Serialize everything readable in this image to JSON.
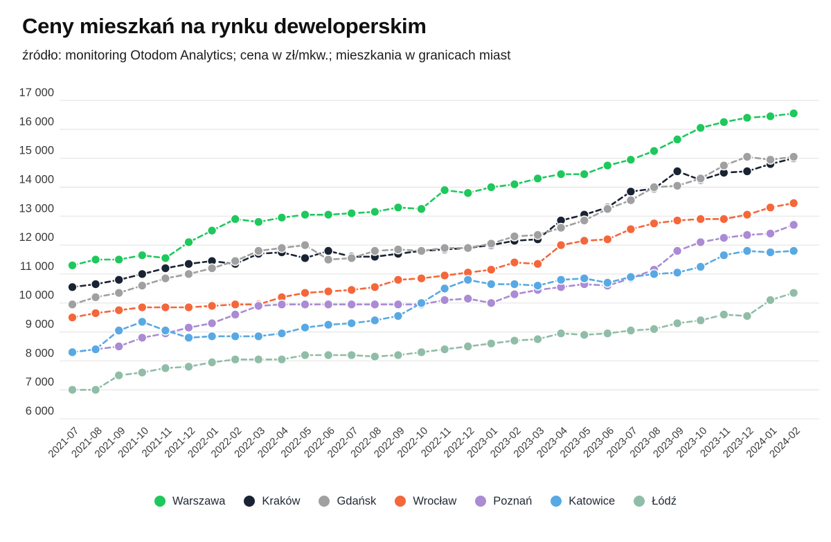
{
  "page": {
    "title": "Ceny mieszkań na rynku deweloperskim",
    "subtitle": "źródło: monitoring Otodom Analytics; cena w zł/mkw.; mieszkania w granicach miast"
  },
  "chart_data": {
    "type": "line",
    "style": "dashed-lines-with-round-markers",
    "title": "Ceny mieszkań na rynku deweloperskim",
    "subtitle": "źródło: monitoring Otodom Analytics; cena w zł/mkw.; mieszkania w granicach miast",
    "xlabel": "",
    "ylabel": "cena w zł/mkw.",
    "ylim": [
      6000,
      17000
    ],
    "ytick_step": 1000,
    "grid": "horizontal",
    "legend_position": "bottom",
    "y_tick_labels": [
      "17 000",
      "16 000",
      "15 000",
      "14 000",
      "13 000",
      "12 000",
      "11 000",
      "10 000",
      "9 000",
      "8 000",
      "7 000",
      "6 000"
    ],
    "x_labels": [
      "2021-07",
      "2021-08",
      "2021-09",
      "2021-10",
      "2021-11",
      "2021-12",
      "2022-01",
      "2022-02",
      "2022-03",
      "2022-04",
      "2022-05",
      "2022-06",
      "2022-07",
      "2022-08",
      "2022-09",
      "2022-10",
      "2022-11",
      "2022-12",
      "2023-01",
      "2023-02",
      "2023-03",
      "2023-04",
      "2023-05",
      "2023-06",
      "2023-07",
      "2023-08",
      "2023-09",
      "2023-10",
      "2023-11",
      "2023-12",
      "2024-01",
      "2024-02"
    ],
    "series": [
      {
        "name": "Warszawa",
        "color": "#1ec85d",
        "values": [
          11300,
          11500,
          11500,
          11650,
          11550,
          12100,
          12500,
          12900,
          12800,
          12950,
          13050,
          13050,
          13100,
          13150,
          13300,
          13250,
          13900,
          13800,
          14000,
          14100,
          14300,
          14450,
          14450,
          14750,
          14950,
          15250,
          15650,
          16050,
          16250,
          16400,
          16450,
          16550
        ]
      },
      {
        "name": "Kraków",
        "color": "#1a2333",
        "values": [
          10550,
          10650,
          10800,
          11000,
          11200,
          11350,
          11450,
          11350,
          11700,
          11750,
          11550,
          11800,
          11600,
          11600,
          11700,
          11800,
          11850,
          11900,
          12000,
          12150,
          12200,
          12850,
          13050,
          13300,
          13850,
          13950,
          14550,
          14250,
          14500,
          14550,
          14800,
          15000
        ]
      },
      {
        "name": "Gdańsk",
        "color": "#a0a0a0",
        "values": [
          9950,
          10200,
          10350,
          10600,
          10850,
          11000,
          11200,
          11450,
          11800,
          11900,
          12000,
          11500,
          11550,
          11800,
          11850,
          11800,
          11900,
          11900,
          12050,
          12300,
          12350,
          12600,
          12850,
          13250,
          13550,
          14000,
          14050,
          14300,
          14750,
          15050,
          14950,
          15050
        ]
      },
      {
        "name": "Wrocław",
        "color": "#f4673a",
        "values": [
          9500,
          9650,
          9750,
          9850,
          9850,
          9850,
          9900,
          9950,
          9950,
          10200,
          10350,
          10400,
          10450,
          10550,
          10800,
          10850,
          10950,
          11050,
          11150,
          11400,
          11350,
          12000,
          12150,
          12200,
          12550,
          12750,
          12850,
          12900,
          12900,
          13050,
          13300,
          13450
        ]
      },
      {
        "name": "Poznań",
        "color": "#aa8bd4",
        "values": [
          8300,
          8400,
          8500,
          8800,
          8950,
          9150,
          9300,
          9600,
          9900,
          9950,
          9950,
          9950,
          9950,
          9950,
          9950,
          9950,
          10100,
          10150,
          10000,
          10300,
          10450,
          10550,
          10650,
          10600,
          10850,
          11150,
          11800,
          12100,
          12250,
          12350,
          12400,
          12700
        ]
      },
      {
        "name": "Katowice",
        "color": "#58a9e3",
        "values": [
          8300,
          8400,
          9050,
          9350,
          9050,
          8800,
          8850,
          8850,
          8850,
          8950,
          9150,
          9250,
          9300,
          9400,
          9550,
          10000,
          10500,
          10800,
          10650,
          10650,
          10600,
          10800,
          10850,
          10700,
          10900,
          11000,
          11050,
          11250,
          11650,
          11800,
          11750,
          11800
        ]
      },
      {
        "name": "Łódź",
        "color": "#90bda7",
        "values": [
          7000,
          7000,
          7500,
          7600,
          7750,
          7800,
          7950,
          8050,
          8050,
          8050,
          8200,
          8200,
          8200,
          8150,
          8200,
          8300,
          8400,
          8500,
          8600,
          8700,
          8750,
          8950,
          8900,
          8950,
          9050,
          9100,
          9300,
          9400,
          9600,
          9550,
          10100,
          10350
        ]
      }
    ]
  }
}
